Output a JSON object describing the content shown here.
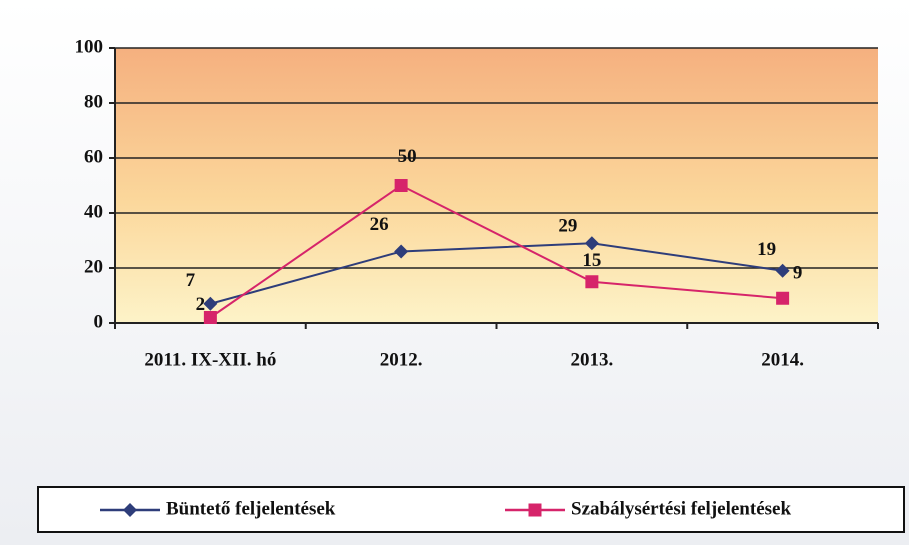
{
  "chart_data": {
    "type": "line",
    "categories": [
      "2011. IX-XII. hó",
      "2012.",
      "2013.",
      "2014."
    ],
    "series": [
      {
        "name": "Büntető feljelentések",
        "color": "#2e3d7a",
        "marker": "diamond",
        "values": [
          7,
          26,
          29,
          19
        ]
      },
      {
        "name": "Szabálysértési feljelentések",
        "color": "#d6246a",
        "marker": "square",
        "values": [
          2,
          50,
          15,
          9
        ]
      }
    ],
    "ylim": [
      0,
      100
    ],
    "yticks": [
      0,
      20,
      40,
      60,
      80,
      100
    ],
    "grid": true,
    "legend": "bottom"
  }
}
